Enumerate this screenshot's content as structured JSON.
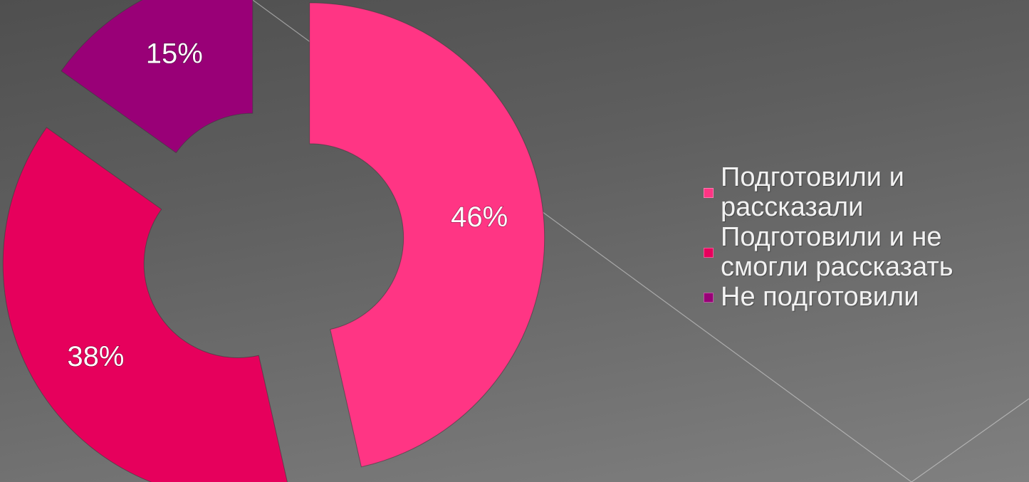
{
  "chart_data": {
    "type": "pie",
    "title": "",
    "categories": [
      "Подготовили и рассказали",
      "Подготовили и не смогли рассказать",
      "Не подготовили"
    ],
    "values": [
      46,
      38,
      15
    ],
    "labels": [
      "46%",
      "38%",
      "15%"
    ],
    "colors": [
      "#ff3584",
      "#e6005c",
      "#990077"
    ],
    "exploded": true,
    "legend_position": "right"
  },
  "legend": {
    "items": [
      {
        "label": "Подготовили и рассказали",
        "color": "#ff3584"
      },
      {
        "label": "Подготовили и не смогли рассказать",
        "color": "#e6005c"
      },
      {
        "label": "Не подготовили",
        "color": "#990077"
      }
    ]
  }
}
